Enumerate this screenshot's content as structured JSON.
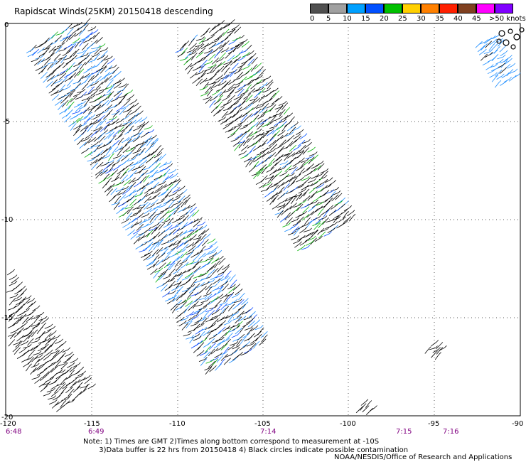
{
  "title": "Rapidscat Winds(25KM) 20150418 descending",
  "legend": {
    "labels": [
      "0",
      "5",
      "10",
      "15",
      "20",
      "25",
      "30",
      "35",
      "40",
      "45",
      ">50 knots"
    ],
    "colors": [
      "#505050",
      "#a0a0a0",
      "#00a0ff",
      "#0050ff",
      "#00c000",
      "#ffd000",
      "#ff8000",
      "#ff2000",
      "#804020",
      "#ff00ff",
      "#8000ff"
    ]
  },
  "axes": {
    "lon_ticks": [
      "-120",
      "-115",
      "-110",
      "-105",
      "-100",
      "-95",
      "-90"
    ],
    "lat_ticks": [
      "0",
      "-5",
      "-10",
      "-15",
      "-20"
    ]
  },
  "times": [
    {
      "label": "6:48",
      "lon": -120
    },
    {
      "label": "6:49",
      "lon": -115
    },
    {
      "label": "7:14",
      "lon": -105
    },
    {
      "label": "7:15",
      "lon": -97.5
    },
    {
      "label": "7:16",
      "lon": -95
    }
  ],
  "notes": {
    "line1": "Note: 1) Times are GMT 2)Times along bottom correspond to measurement at -10S",
    "line2": "3)Data buffer is 22 hrs from 20150418 4) Black circles indicate possible contamination"
  },
  "credit": "NOAA/NESDIS/Office of Research and Applications"
}
